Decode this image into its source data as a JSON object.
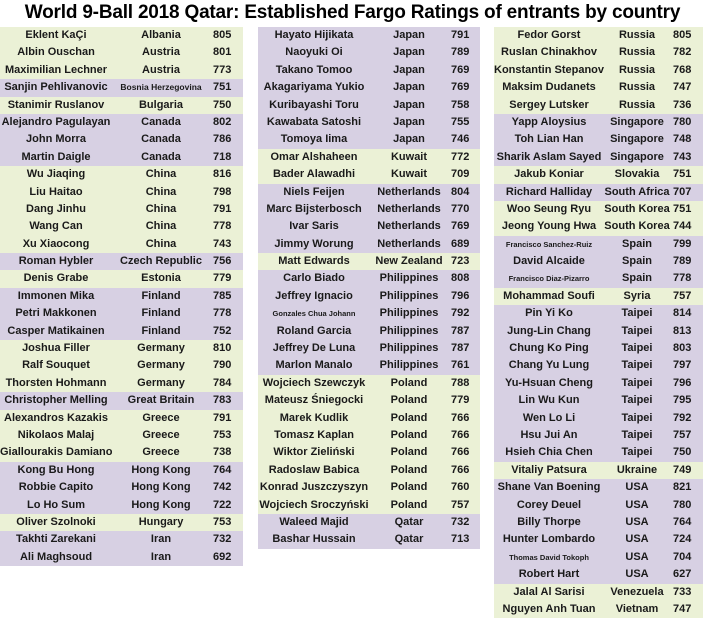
{
  "title": "World 9-Ball 2018 Qatar: Established Fargo Ratings of entrants by country",
  "colors": {
    "green_row": "#ebf1d6",
    "purple_row": "#d7d0e3"
  },
  "columns": [
    {
      "rows": [
        {
          "name": "Eklent KaÇi",
          "country": "Albania",
          "rating": "805",
          "bg": "g"
        },
        {
          "name": "Albin Ouschan",
          "country": "Austria",
          "rating": "801",
          "bg": "g"
        },
        {
          "name": "Maximilian Lechner",
          "country": "Austria",
          "rating": "773",
          "bg": "g"
        },
        {
          "name": "Sanjin Pehlivanovic",
          "country": "Bosnia Herzegovina",
          "rating": "751",
          "bg": "p"
        },
        {
          "name": "Stanimir Ruslanov",
          "country": "Bulgaria",
          "rating": "750",
          "bg": "g"
        },
        {
          "name": "Alejandro Pagulayan",
          "country": "Canada",
          "rating": "802",
          "bg": "p"
        },
        {
          "name": "John Morra",
          "country": "Canada",
          "rating": "786",
          "bg": "p"
        },
        {
          "name": "Martin Daigle",
          "country": "Canada",
          "rating": "718",
          "bg": "p"
        },
        {
          "name": "Wu Jiaqing",
          "country": "China",
          "rating": "816",
          "bg": "g"
        },
        {
          "name": "Liu Haitao",
          "country": "China",
          "rating": "798",
          "bg": "g"
        },
        {
          "name": "Dang Jinhu",
          "country": "China",
          "rating": "791",
          "bg": "g"
        },
        {
          "name": "Wang Can",
          "country": "China",
          "rating": "778",
          "bg": "g"
        },
        {
          "name": "Xu Xiaocong",
          "country": "China",
          "rating": "743",
          "bg": "g"
        },
        {
          "name": "Roman Hybler",
          "country": "Czech Republic",
          "rating": "756",
          "bg": "p"
        },
        {
          "name": "Denis Grabe",
          "country": "Estonia",
          "rating": "779",
          "bg": "g"
        },
        {
          "name": "Immonen Mika",
          "country": "Finland",
          "rating": "785",
          "bg": "p"
        },
        {
          "name": "Petri Makkonen",
          "country": "Finland",
          "rating": "778",
          "bg": "p"
        },
        {
          "name": "Casper Matikainen",
          "country": "Finland",
          "rating": "752",
          "bg": "p"
        },
        {
          "name": "Joshua Filler",
          "country": "Germany",
          "rating": "810",
          "bg": "g"
        },
        {
          "name": "Ralf Souquet",
          "country": "Germany",
          "rating": "790",
          "bg": "g"
        },
        {
          "name": "Thorsten Hohmann",
          "country": "Germany",
          "rating": "784",
          "bg": "g"
        },
        {
          "name": "Christopher Melling",
          "country": "Great Britain",
          "rating": "783",
          "bg": "p"
        },
        {
          "name": "Alexandros Kazakis",
          "country": "Greece",
          "rating": "791",
          "bg": "g"
        },
        {
          "name": "Nikolaos Malaj",
          "country": "Greece",
          "rating": "753",
          "bg": "g"
        },
        {
          "name": "Giallourakis Damianos",
          "country": "Greece",
          "rating": "738",
          "bg": "g"
        },
        {
          "name": "Kong Bu Hong",
          "country": "Hong Kong",
          "rating": "764",
          "bg": "p"
        },
        {
          "name": "Robbie Capito",
          "country": "Hong Kong",
          "rating": "742",
          "bg": "p"
        },
        {
          "name": "Lo Ho Sum",
          "country": "Hong Kong",
          "rating": "722",
          "bg": "p"
        },
        {
          "name": "Oliver Szolnoki",
          "country": "Hungary",
          "rating": "753",
          "bg": "g"
        },
        {
          "name": "Takhti Zarekani",
          "country": "Iran",
          "rating": "732",
          "bg": "p"
        },
        {
          "name": "Ali Maghsoud",
          "country": "Iran",
          "rating": "692",
          "bg": "p"
        }
      ]
    },
    {
      "rows": [
        {
          "name": "Hayato Hijikata",
          "country": "Japan",
          "rating": "791",
          "bg": "p"
        },
        {
          "name": "Naoyuki Oi",
          "country": "Japan",
          "rating": "789",
          "bg": "p"
        },
        {
          "name": "Takano Tomoo",
          "country": "Japan",
          "rating": "769",
          "bg": "p"
        },
        {
          "name": "Akagariyama Yukio",
          "country": "Japan",
          "rating": "769",
          "bg": "p"
        },
        {
          "name": "Kuribayashi Toru",
          "country": "Japan",
          "rating": "758",
          "bg": "p"
        },
        {
          "name": "Kawabata Satoshi",
          "country": "Japan",
          "rating": "755",
          "bg": "p"
        },
        {
          "name": "Tomoya Iima",
          "country": "Japan",
          "rating": "746",
          "bg": "p"
        },
        {
          "name": "Omar Alshaheen",
          "country": "Kuwait",
          "rating": "772",
          "bg": "g"
        },
        {
          "name": "Bader Alawadhi",
          "country": "Kuwait",
          "rating": "709",
          "bg": "g"
        },
        {
          "name": "Niels Feijen",
          "country": "Netherlands",
          "rating": "804",
          "bg": "p"
        },
        {
          "name": "Marc Bijsterbosch",
          "country": "Netherlands",
          "rating": "770",
          "bg": "p"
        },
        {
          "name": "Ivar Saris",
          "country": "Netherlands",
          "rating": "769",
          "bg": "p"
        },
        {
          "name": "Jimmy Worung",
          "country": "Netherlands",
          "rating": "689",
          "bg": "p"
        },
        {
          "name": "Matt Edwards",
          "country": "New Zealand",
          "rating": "723",
          "bg": "g"
        },
        {
          "name": "Carlo Biado",
          "country": "Philippines",
          "rating": "808",
          "bg": "p"
        },
        {
          "name": "Jeffrey Ignacio",
          "country": "Philippines",
          "rating": "796",
          "bg": "p"
        },
        {
          "name": "Gonzales Chua Johann",
          "country": "Philippines",
          "rating": "792",
          "bg": "p"
        },
        {
          "name": "Roland Garcia",
          "country": "Philippines",
          "rating": "787",
          "bg": "p"
        },
        {
          "name": "Jeffrey De Luna",
          "country": "Philippines",
          "rating": "787",
          "bg": "p"
        },
        {
          "name": "Marlon Manalo",
          "country": "Philippines",
          "rating": "761",
          "bg": "p"
        },
        {
          "name": "Wojciech Szewczyk",
          "country": "Poland",
          "rating": "788",
          "bg": "g"
        },
        {
          "name": "Mateusz Śniegocki",
          "country": "Poland",
          "rating": "779",
          "bg": "g"
        },
        {
          "name": "Marek Kudlik",
          "country": "Poland",
          "rating": "766",
          "bg": "g"
        },
        {
          "name": "Tomasz Kaplan",
          "country": "Poland",
          "rating": "766",
          "bg": "g"
        },
        {
          "name": "Wiktor Zieliński",
          "country": "Poland",
          "rating": "766",
          "bg": "g"
        },
        {
          "name": "Radoslaw Babica",
          "country": "Poland",
          "rating": "766",
          "bg": "g"
        },
        {
          "name": "Konrad Juszczyszyn",
          "country": "Poland",
          "rating": "760",
          "bg": "g"
        },
        {
          "name": "Wojciech Sroczyński",
          "country": "Poland",
          "rating": "757",
          "bg": "g"
        },
        {
          "name": "Waleed Majid",
          "country": "Qatar",
          "rating": "732",
          "bg": "p"
        },
        {
          "name": "Bashar Hussain",
          "country": "Qatar",
          "rating": "713",
          "bg": "p"
        }
      ]
    },
    {
      "rows": [
        {
          "name": "Fedor Gorst",
          "country": "Russia",
          "rating": "805",
          "bg": "g"
        },
        {
          "name": "Ruslan Chinakhov",
          "country": "Russia",
          "rating": "782",
          "bg": "g"
        },
        {
          "name": "Konstantin Stepanov",
          "country": "Russia",
          "rating": "768",
          "bg": "g"
        },
        {
          "name": "Maksim Dudanets",
          "country": "Russia",
          "rating": "747",
          "bg": "g"
        },
        {
          "name": "Sergey Lutsker",
          "country": "Russia",
          "rating": "736",
          "bg": "g"
        },
        {
          "name": "Yapp Aloysius",
          "country": "Singapore",
          "rating": "780",
          "bg": "p"
        },
        {
          "name": "Toh Lian Han",
          "country": "Singapore",
          "rating": "748",
          "bg": "p"
        },
        {
          "name": "Sharik Aslam Sayed",
          "country": "Singapore",
          "rating": "743",
          "bg": "p"
        },
        {
          "name": "Jakub Koniar",
          "country": "Slovakia",
          "rating": "751",
          "bg": "g"
        },
        {
          "name": "Richard Halliday",
          "country": "South Africa",
          "rating": "707",
          "bg": "p"
        },
        {
          "name": "Woo Seung Ryu",
          "country": "South Korea",
          "rating": "751",
          "bg": "g"
        },
        {
          "name": "Jeong Young Hwa",
          "country": "South Korea",
          "rating": "744",
          "bg": "g"
        },
        {
          "name": "Francisco Sanchez-Ruiz",
          "country": "Spain",
          "rating": "799",
          "bg": "p"
        },
        {
          "name": "David Alcaide",
          "country": "Spain",
          "rating": "789",
          "bg": "p"
        },
        {
          "name": "Francisco Diaz-Pizarro",
          "country": "Spain",
          "rating": "778",
          "bg": "p"
        },
        {
          "name": "Mohammad Soufi",
          "country": "Syria",
          "rating": "757",
          "bg": "g"
        },
        {
          "name": "Pin Yi Ko",
          "country": "Taipei",
          "rating": "814",
          "bg": "p"
        },
        {
          "name": "Jung-Lin Chang",
          "country": "Taipei",
          "rating": "813",
          "bg": "p"
        },
        {
          "name": "Chung Ko Ping",
          "country": "Taipei",
          "rating": "803",
          "bg": "p"
        },
        {
          "name": "Chang Yu Lung",
          "country": "Taipei",
          "rating": "797",
          "bg": "p"
        },
        {
          "name": "Yu-Hsuan Cheng",
          "country": "Taipei",
          "rating": "796",
          "bg": "p"
        },
        {
          "name": "Lin Wu Kun",
          "country": "Taipei",
          "rating": "795",
          "bg": "p"
        },
        {
          "name": "Wen Lo Li",
          "country": "Taipei",
          "rating": "792",
          "bg": "p"
        },
        {
          "name": "Hsu Jui An",
          "country": "Taipei",
          "rating": "757",
          "bg": "p"
        },
        {
          "name": "Hsieh Chia Chen",
          "country": "Taipei",
          "rating": "750",
          "bg": "p"
        },
        {
          "name": "Vitaliy Patsura",
          "country": "Ukraine",
          "rating": "749",
          "bg": "g"
        },
        {
          "name": "Shane Van Boening",
          "country": "USA",
          "rating": "821",
          "bg": "p"
        },
        {
          "name": "Corey Deuel",
          "country": "USA",
          "rating": "780",
          "bg": "p"
        },
        {
          "name": "Billy Thorpe",
          "country": "USA",
          "rating": "764",
          "bg": "p"
        },
        {
          "name": "Hunter Lombardo",
          "country": "USA",
          "rating": "724",
          "bg": "p"
        },
        {
          "name": "Thomas David Tokoph",
          "country": "USA",
          "rating": "704",
          "bg": "p"
        },
        {
          "name": "Robert Hart",
          "country": "USA",
          "rating": "627",
          "bg": "p"
        },
        {
          "name": "Jalal Al Sarisi",
          "country": "Venezuela",
          "rating": "733",
          "bg": "g"
        },
        {
          "name": "Nguyen Anh Tuan",
          "country": "Vietnam",
          "rating": "747",
          "bg": "g"
        }
      ]
    }
  ]
}
